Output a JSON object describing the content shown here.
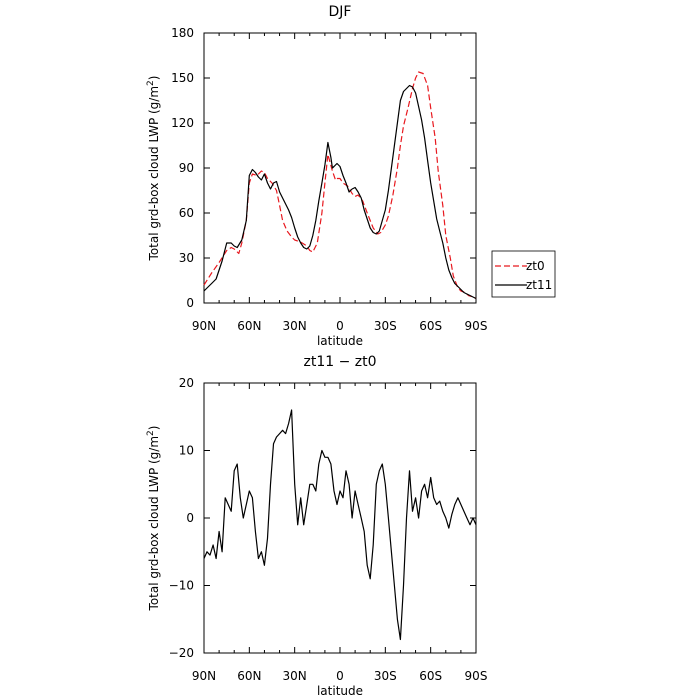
{
  "chart_data": [
    {
      "type": "line",
      "title": "DJF",
      "xlabel": "latitude",
      "ylabel": "Total grd-box cloud LWP (g/m",
      "ylabel_sup": "2",
      "ylabel_close": ")",
      "xlim": [
        90,
        -90
      ],
      "ylim": [
        0,
        180
      ],
      "x_ticks": [
        90,
        60,
        30,
        0,
        -30,
        -60,
        -90
      ],
      "x_tick_labels": [
        "90N",
        "60N",
        "30N",
        "0",
        "30S",
        "60S",
        "90S"
      ],
      "y_ticks": [
        0,
        30,
        60,
        90,
        120,
        150,
        180
      ],
      "y_tick_labels": [
        "0",
        "30",
        "60",
        "90",
        "120",
        "150",
        "180"
      ],
      "legend_position": "right",
      "series": [
        {
          "name": "zt0",
          "color": "#e8191f",
          "dash": "dashed",
          "x": [
            90,
            85,
            80,
            75,
            72,
            70,
            67,
            65,
            62,
            60,
            58,
            55,
            52,
            50,
            48,
            45,
            42,
            40,
            38,
            35,
            32,
            30,
            27,
            25,
            22,
            20,
            18,
            15,
            12,
            10,
            8,
            5,
            3,
            2,
            0,
            -2,
            -5,
            -8,
            -10,
            -12,
            -15,
            -18,
            -20,
            -22,
            -25,
            -27,
            -30,
            -32,
            -35,
            -38,
            -40,
            -42,
            -45,
            -48,
            -50,
            -52,
            -55,
            -58,
            -60,
            -63,
            -65,
            -68,
            -70,
            -73,
            -75,
            -78,
            -80,
            -83,
            -85,
            -88,
            -90
          ],
          "y": [
            12,
            20,
            27,
            35,
            37,
            36,
            33,
            40,
            55,
            80,
            86,
            85,
            88,
            87,
            83,
            80,
            75,
            65,
            55,
            48,
            44,
            42,
            41,
            40,
            38,
            35,
            34,
            40,
            60,
            80,
            99,
            88,
            82,
            83,
            83,
            80,
            78,
            73,
            71,
            72,
            68,
            60,
            55,
            50,
            46,
            47,
            52,
            58,
            72,
            90,
            105,
            118,
            130,
            143,
            150,
            154,
            153,
            145,
            130,
            110,
            88,
            65,
            45,
            30,
            18,
            10,
            8,
            7,
            5,
            4,
            3
          ]
        },
        {
          "name": "zt11",
          "color": "#000000",
          "dash": "solid",
          "x": [
            90,
            88,
            85,
            82,
            80,
            78,
            75,
            72,
            70,
            68,
            65,
            62,
            60,
            58,
            56,
            54,
            52,
            50,
            48,
            46,
            44,
            42,
            40,
            38,
            36,
            34,
            32,
            30,
            28,
            26,
            24,
            22,
            20,
            18,
            16,
            14,
            12,
            10,
            8,
            6,
            5,
            4,
            2,
            0,
            -2,
            -4,
            -6,
            -8,
            -10,
            -12,
            -14,
            -16,
            -18,
            -20,
            -22,
            -24,
            -26,
            -28,
            -30,
            -32,
            -34,
            -36,
            -38,
            -40,
            -42,
            -44,
            -46,
            -48,
            -50,
            -52,
            -54,
            -56,
            -58,
            -60,
            -62,
            -64,
            -66,
            -68,
            -70,
            -72,
            -74,
            -76,
            -78,
            -80,
            -82,
            -84,
            -86,
            -88,
            -90
          ],
          "y": [
            8,
            10,
            13,
            16,
            22,
            28,
            40,
            40,
            38,
            37,
            42,
            55,
            85,
            89,
            87,
            84,
            82,
            86,
            80,
            76,
            80,
            81,
            74,
            70,
            66,
            62,
            57,
            50,
            44,
            40,
            37,
            36,
            38,
            45,
            55,
            68,
            80,
            92,
            107,
            97,
            90,
            91,
            93,
            91,
            85,
            80,
            74,
            76,
            77,
            74,
            70,
            62,
            56,
            50,
            47,
            46,
            48,
            55,
            62,
            75,
            90,
            105,
            120,
            135,
            141,
            143,
            145,
            144,
            140,
            131,
            122,
            110,
            95,
            80,
            68,
            56,
            48,
            40,
            30,
            22,
            17,
            13,
            11,
            9,
            7,
            6,
            5,
            4,
            3
          ]
        }
      ]
    },
    {
      "type": "line",
      "title": "zt11 − zt0",
      "xlabel": "latitude",
      "ylabel": "Total grd-box cloud LWP (g/m",
      "ylabel_sup": "2",
      "ylabel_close": ")",
      "xlim": [
        90,
        -90
      ],
      "ylim": [
        -20,
        20
      ],
      "x_ticks": [
        90,
        60,
        30,
        0,
        -30,
        -60,
        -90
      ],
      "x_tick_labels": [
        "90N",
        "60N",
        "30N",
        "0",
        "30S",
        "60S",
        "90S"
      ],
      "y_ticks": [
        -20,
        -10,
        0,
        10,
        20
      ],
      "y_tick_labels": [
        "−20",
        "−10",
        "0",
        "10",
        "20"
      ],
      "series": [
        {
          "name": "",
          "color": "#000000",
          "dash": "solid",
          "x": [
            90,
            88,
            86,
            84,
            82,
            80,
            78,
            76,
            74,
            72,
            70,
            68,
            66,
            64,
            62,
            60,
            58,
            56,
            54,
            52,
            50,
            48,
            46,
            44,
            42,
            40,
            38,
            36,
            34,
            32,
            30,
            28,
            26,
            24,
            22,
            20,
            18,
            16,
            14,
            12,
            10,
            8,
            6,
            4,
            2,
            0,
            -2,
            -4,
            -6,
            -8,
            -10,
            -12,
            -14,
            -16,
            -18,
            -20,
            -22,
            -24,
            -26,
            -28,
            -30,
            -32,
            -34,
            -36,
            -38,
            -40,
            -42,
            -44,
            -46,
            -48,
            -50,
            -52,
            -54,
            -56,
            -58,
            -60,
            -62,
            -64,
            -66,
            -68,
            -70,
            -72,
            -74,
            -76,
            -78,
            -80,
            -82,
            -84,
            -86,
            -88,
            -90
          ],
          "y": [
            -6,
            -5,
            -5.5,
            -4,
            -6,
            -2,
            -5,
            3,
            2,
            1,
            7,
            8,
            3,
            0,
            2,
            4,
            3,
            -2,
            -6,
            -5,
            -7,
            -3,
            5,
            11,
            12,
            12.5,
            13,
            12.5,
            14,
            16,
            5,
            -1,
            3,
            -1,
            2,
            5,
            5,
            4,
            8,
            10,
            9,
            9,
            8,
            4,
            2,
            4,
            3,
            7,
            5,
            0,
            4,
            2,
            0,
            -2,
            -7,
            -9,
            -4,
            5,
            7,
            8,
            5,
            0,
            -5,
            -10,
            -15,
            -18,
            -10,
            0,
            7,
            1,
            3,
            0,
            4,
            5,
            3,
            6,
            3,
            2,
            2.5,
            1,
            0,
            -1.5,
            0.5,
            2,
            3,
            2,
            1,
            0,
            -1,
            0,
            -1
          ]
        }
      ]
    }
  ]
}
